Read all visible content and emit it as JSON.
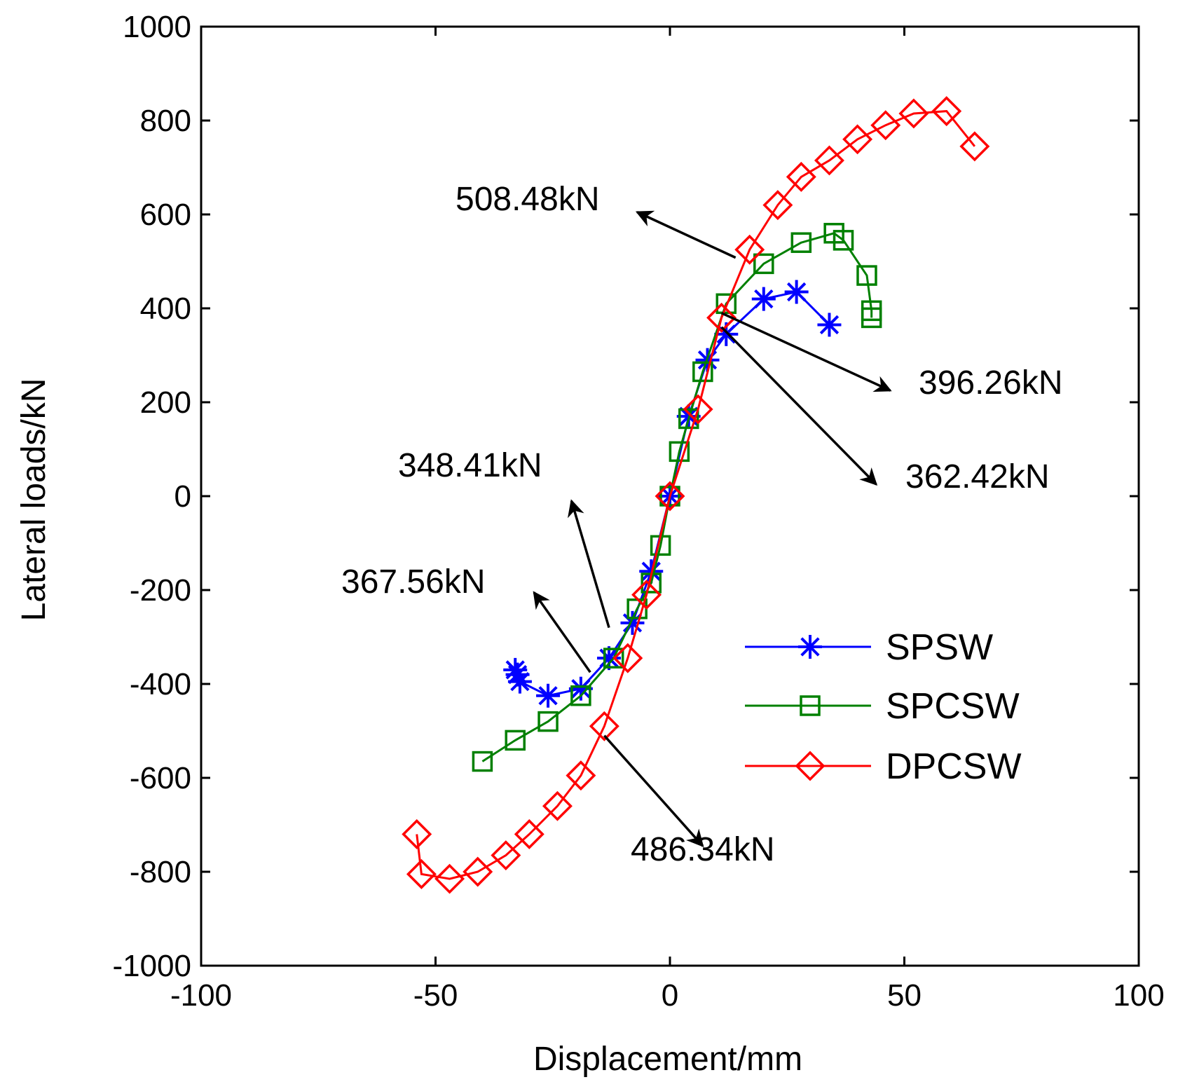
{
  "chart_data": {
    "type": "line",
    "title": "",
    "xlabel": "Displacement/mm",
    "ylabel": "Lateral loads/kN",
    "xlim": [
      -100,
      100
    ],
    "ylim": [
      -1000,
      1000
    ],
    "xticks": [
      -100,
      -50,
      0,
      50,
      100
    ],
    "yticks": [
      -1000,
      -800,
      -600,
      -400,
      -200,
      0,
      200,
      400,
      600,
      800,
      1000
    ],
    "grid": false,
    "legend_position": "bottom-right",
    "series": [
      {
        "name": "SPSW",
        "color": "#0000ff",
        "marker": "asterisk",
        "x": [
          -33,
          -32.5,
          -32,
          -26,
          -19,
          -13,
          -8,
          -4,
          0,
          4,
          8,
          12,
          20,
          27,
          34
        ],
        "y": [
          -370,
          -380,
          -395,
          -425,
          -410,
          -345,
          -270,
          -160,
          0,
          170,
          290,
          345,
          420,
          435,
          365
        ]
      },
      {
        "name": "SPCSW",
        "color": "#008000",
        "marker": "square",
        "x": [
          -40,
          -33,
          -26,
          -19,
          -12,
          -7,
          -4,
          -2,
          0,
          2,
          4,
          7,
          12,
          20,
          28,
          35,
          37,
          42,
          43,
          43
        ],
        "y": [
          -565,
          -520,
          -480,
          -425,
          -345,
          -240,
          -185,
          -105,
          0,
          95,
          165,
          265,
          410,
          495,
          540,
          560,
          545,
          470,
          395,
          380
        ]
      },
      {
        "name": "DPCSW",
        "color": "#ff0000",
        "marker": "diamond",
        "x": [
          -54,
          -53,
          -47,
          -41,
          -35,
          -30,
          -24,
          -19,
          -14,
          -9,
          -5,
          0,
          6,
          11,
          17,
          23,
          28,
          34,
          40,
          46,
          52,
          59,
          65
        ],
        "y": [
          -720,
          -805,
          -815,
          -800,
          -765,
          -720,
          -660,
          -595,
          -490,
          -345,
          -210,
          0,
          185,
          380,
          525,
          620,
          680,
          715,
          760,
          790,
          815,
          820,
          745
        ]
      }
    ],
    "annotations": [
      {
        "text": "508.48kN",
        "tail": [
          14,
          508
        ],
        "head": [
          -7,
          605
        ]
      },
      {
        "text": "396.26kN",
        "tail": [
          11,
          390
        ],
        "head": [
          47,
          225
        ]
      },
      {
        "text": "362.42kN",
        "tail": [
          11,
          360
        ],
        "head": [
          44,
          25
        ]
      },
      {
        "text": "348.41kN",
        "tail": [
          -13,
          -280
        ],
        "head": [
          -21,
          -10
        ]
      },
      {
        "text": "367.56kN",
        "tail": [
          -17,
          -375
        ],
        "head": [
          -29,
          -205
        ]
      },
      {
        "text": "486.34kN",
        "tail": [
          -14,
          -510
        ],
        "head": [
          7,
          -745
        ]
      }
    ]
  }
}
